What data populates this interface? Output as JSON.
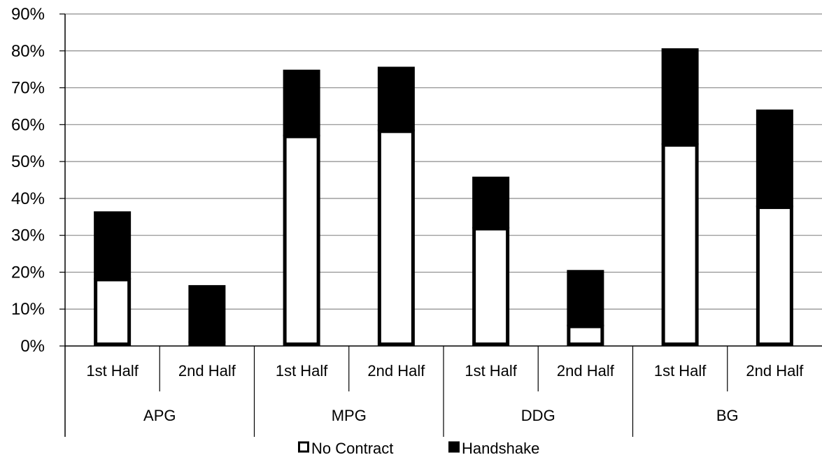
{
  "chart_data": {
    "type": "bar",
    "stacked": true,
    "y_ticks": [
      "0%",
      "10%",
      "20%",
      "30%",
      "40%",
      "50%",
      "60%",
      "70%",
      "80%",
      "90%"
    ],
    "ylim": [
      0,
      90
    ],
    "grid": true,
    "legend_position": "bottom",
    "groups": [
      {
        "label": "APG",
        "bars": [
          {
            "label": "1st Half",
            "no_contract": 18,
            "handshake": 18.5
          },
          {
            "label": "2nd Half",
            "no_contract": 0.8,
            "handshake": 15.7
          }
        ]
      },
      {
        "label": "MPG",
        "bars": [
          {
            "label": "1st Half",
            "no_contract": 56.8,
            "handshake": 18.1
          },
          {
            "label": "2nd Half",
            "no_contract": 58.2,
            "handshake": 17.5
          }
        ]
      },
      {
        "label": "DDG",
        "bars": [
          {
            "label": "1st Half",
            "no_contract": 31.8,
            "handshake": 14.1
          },
          {
            "label": "2nd Half",
            "no_contract": 5.3,
            "handshake": 15.3
          }
        ]
      },
      {
        "label": "BG",
        "bars": [
          {
            "label": "1st Half",
            "no_contract": 54.5,
            "handshake": 26.2
          },
          {
            "label": "2nd Half",
            "no_contract": 37.6,
            "handshake": 26.5
          }
        ]
      }
    ],
    "series": [
      {
        "name": "No Contract",
        "color": "#ffffff",
        "key": "no_contract"
      },
      {
        "name": "Handshake",
        "color": "#000000",
        "key": "handshake"
      }
    ]
  }
}
